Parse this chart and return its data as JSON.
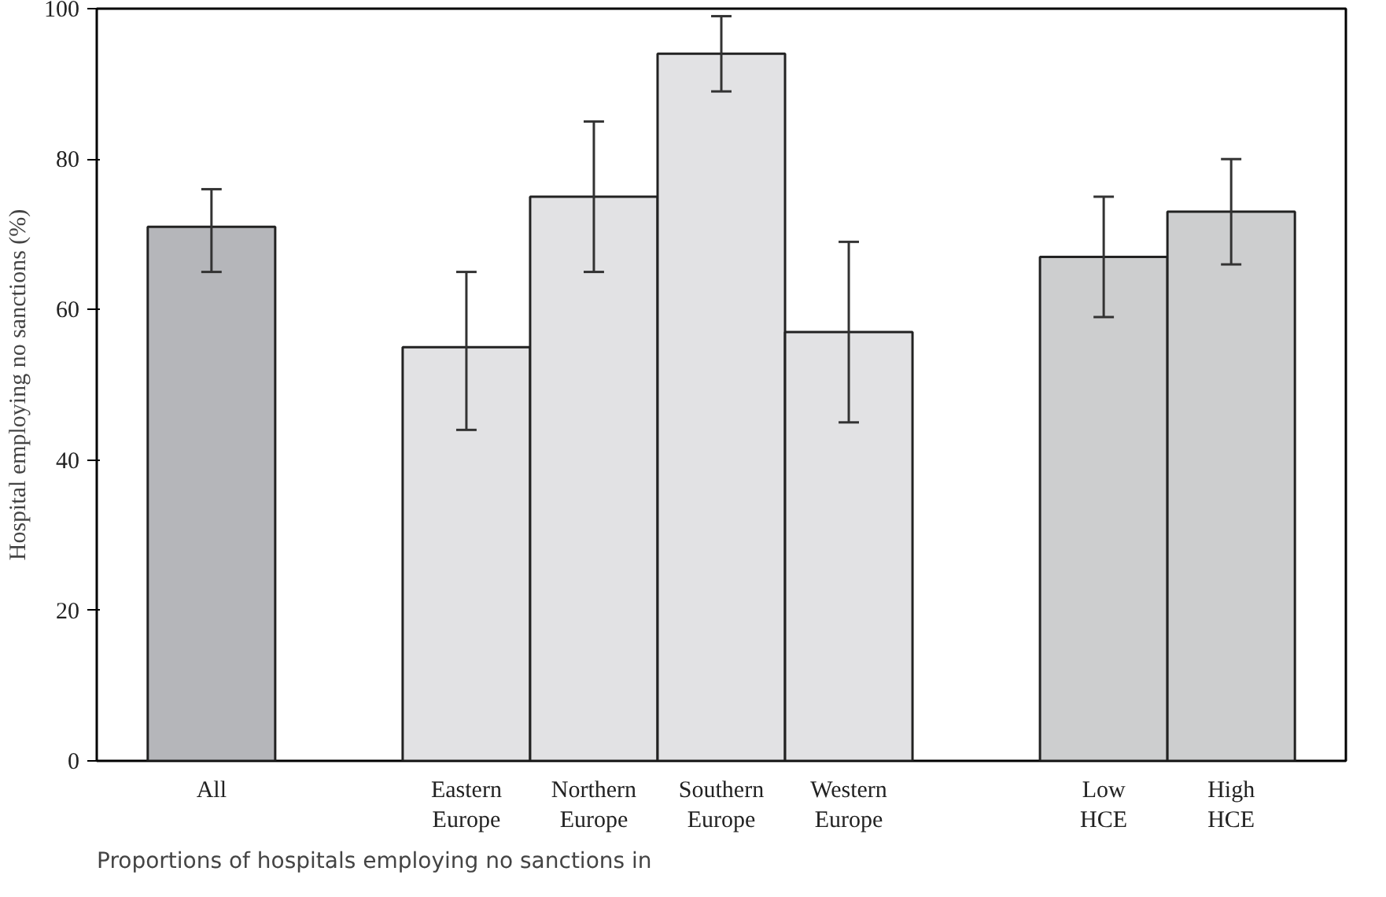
{
  "chart_data": {
    "type": "bar",
    "ylabel": "Hospital employing no sanctions (%)",
    "categories": [
      "All",
      null,
      "Eastern\nEurope",
      "Northern\nEurope",
      "Southern\nEurope",
      "Western\nEurope",
      null,
      "Low\nHCE",
      "High\nHCE"
    ],
    "values": [
      71,
      null,
      55,
      75,
      94,
      57,
      null,
      67,
      73
    ],
    "colors": [
      "#b5b6ba",
      "#ffffff",
      "#e2e2e4",
      "#e2e2e4",
      "#e2e2e4",
      "#e2e2e4",
      "#ffffff",
      "#cdcecf",
      "#cdcecf"
    ],
    "errors": [
      [
        65,
        76
      ],
      null,
      [
        44,
        65
      ],
      [
        65,
        85
      ],
      [
        89,
        99
      ],
      [
        45,
        69
      ],
      null,
      [
        59,
        75
      ],
      [
        66,
        80
      ]
    ],
    "ylim": [
      0,
      100
    ],
    "yticks": [
      0,
      20,
      40,
      60,
      80,
      100
    ],
    "grid": false,
    "annotations": [
      "Proportions of hospitals employing no sanctions in"
    ]
  }
}
